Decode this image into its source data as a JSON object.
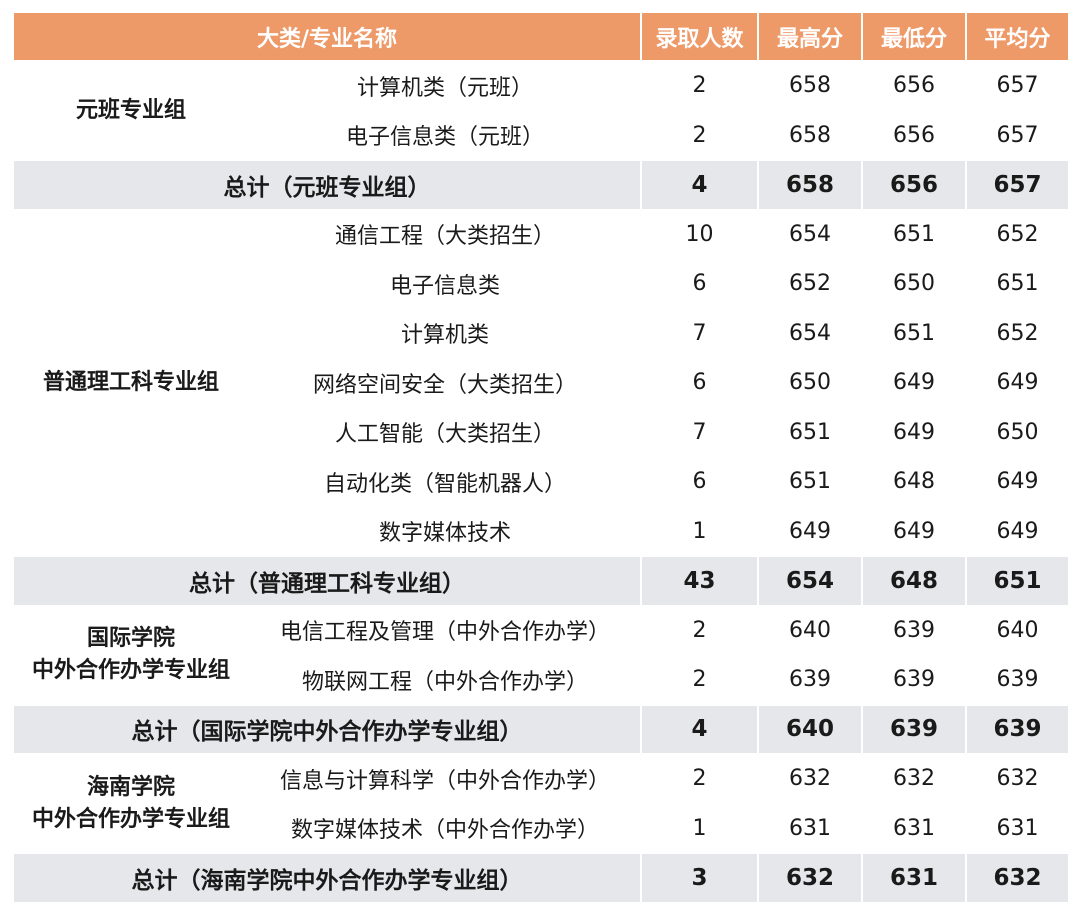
{
  "header": {
    "name": "大类/专业名称",
    "count": "录取人数",
    "max": "最高分",
    "min": "最低分",
    "avg": "平均分"
  },
  "groups": [
    {
      "name": "元班专业组",
      "rows": [
        {
          "major": "计算机类（元班）",
          "count": "2",
          "max": "658",
          "min": "656",
          "avg": "657"
        },
        {
          "major": "电子信息类（元班）",
          "count": "2",
          "max": "658",
          "min": "656",
          "avg": "657"
        }
      ],
      "total": {
        "label": "总计（元班专业组）",
        "count": "4",
        "max": "658",
        "min": "656",
        "avg": "657"
      }
    },
    {
      "name": "普通理工科专业组",
      "rows": [
        {
          "major": "通信工程（大类招生）",
          "count": "10",
          "max": "654",
          "min": "651",
          "avg": "652"
        },
        {
          "major": "电子信息类",
          "count": "6",
          "max": "652",
          "min": "650",
          "avg": "651"
        },
        {
          "major": "计算机类",
          "count": "7",
          "max": "654",
          "min": "651",
          "avg": "652"
        },
        {
          "major": "网络空间安全（大类招生）",
          "count": "6",
          "max": "650",
          "min": "649",
          "avg": "649"
        },
        {
          "major": "人工智能（大类招生）",
          "count": "7",
          "max": "651",
          "min": "649",
          "avg": "650"
        },
        {
          "major": "自动化类（智能机器人）",
          "count": "6",
          "max": "651",
          "min": "648",
          "avg": "649"
        },
        {
          "major": "数字媒体技术",
          "count": "1",
          "max": "649",
          "min": "649",
          "avg": "649"
        }
      ],
      "total": {
        "label": "总计（普通理工科专业组）",
        "count": "43",
        "max": "654",
        "min": "648",
        "avg": "651"
      }
    },
    {
      "name_line1": "国际学院",
      "name_line2": "中外合作办学专业组",
      "rows": [
        {
          "major": "电信工程及管理（中外合作办学）",
          "count": "2",
          "max": "640",
          "min": "639",
          "avg": "640"
        },
        {
          "major": "物联网工程（中外合作办学）",
          "count": "2",
          "max": "639",
          "min": "639",
          "avg": "639"
        }
      ],
      "total": {
        "label": "总计（国际学院中外合作办学专业组）",
        "count": "4",
        "max": "640",
        "min": "639",
        "avg": "639"
      }
    },
    {
      "name_line1": "海南学院",
      "name_line2": "中外合作办学专业组",
      "rows": [
        {
          "major": "信息与计算科学（中外合作办学）",
          "count": "2",
          "max": "632",
          "min": "632",
          "avg": "632"
        },
        {
          "major": "数字媒体技术（中外合作办学）",
          "count": "1",
          "max": "631",
          "min": "631",
          "avg": "631"
        }
      ],
      "total": {
        "label": "总计（海南学院中外合作办学专业组）",
        "count": "3",
        "max": "632",
        "min": "631",
        "avg": "632"
      }
    }
  ]
}
